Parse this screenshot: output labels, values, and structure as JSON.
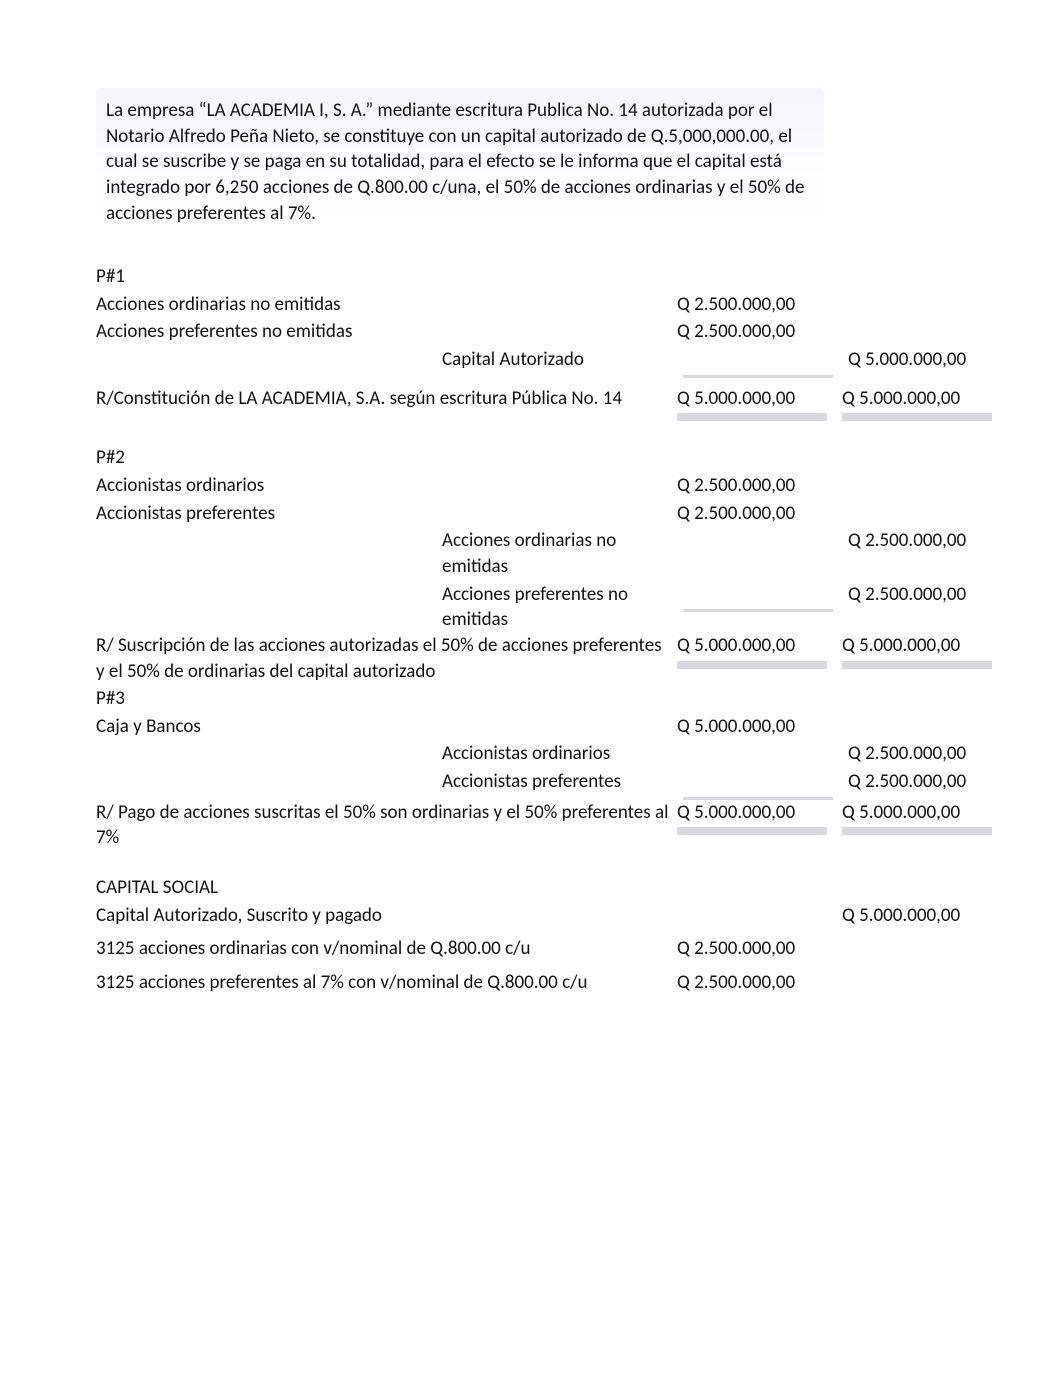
{
  "intro": "La empresa “LA ACADEMIA I, S. A.” mediante escritura Publica No. 14 autorizada por el Notario Alfredo Peña Nieto, se constituye con un capital autorizado de Q.5,000,000.00, el cual se suscribe y se paga en su totalidad, para el efecto se le informa que el capital está integrado por 6,250 acciones de Q.800.00 c/una, el 50% de acciones ordinarias y el 50% de acciones preferentes al 7%.",
  "p1": {
    "heading": "P#1",
    "l1_desc": "Acciones ordinarias no emitidas",
    "l1_debit": "Q  2.500.000,00",
    "l2_desc": "Acciones preferentes no emitidas",
    "l2_debit": "Q  2.500.000,00",
    "l3_mid": "Capital Autorizado",
    "l3_credit": "Q  5.000.000,00",
    "l4_desc": "R/Constitución de LA ACADEMIA, S.A. según escritura Pública No. 14",
    "l4_debit": "Q  5.000.000,00",
    "l4_credit": "Q  5.000.000,00"
  },
  "p2": {
    "heading": "P#2",
    "l1_desc": "Accionistas ordinarios",
    "l1_debit": "Q  2.500.000,00",
    "l2_desc": "Accionistas preferentes",
    "l2_debit": "Q  2.500.000,00",
    "l3_mid": "Acciones ordinarias no emitidas",
    "l3_credit": "Q  2.500.000,00",
    "l4_mid": "Acciones preferentes no emitidas",
    "l4_credit": "Q  2.500.000,00",
    "l5_desc": "R/ Suscripción de las acciones autorizadas el 50% de acciones preferentes y el 50% de ordinarias del capital autorizado",
    "l5_debit": "Q  5.000.000,00",
    "l5_credit": "Q  5.000.000,00"
  },
  "p3": {
    "heading": "P#3",
    "l1_desc": "Caja y Bancos",
    "l1_debit": "Q  5.000.000,00",
    "l2_mid": "Accionistas ordinarios",
    "l2_credit": "Q  2.500.000,00",
    "l3_mid": "Accionistas preferentes",
    "l3_credit": "Q  2.500.000,00",
    "l4_desc": "R/ Pago de acciones suscritas el 50% son ordinarias y el 50% preferentes al 7%",
    "l4_debit": "Q  5.000.000,00",
    "l4_credit": "Q  5.000.000,00"
  },
  "cap": {
    "heading": "CAPITAL SOCIAL",
    "l1_desc": "Capital Autorizado, Suscrito y pagado",
    "l1_credit": "Q  5.000.000,00",
    "l2_desc": "3125 acciones ordinarias con v/nominal de Q.800.00 c/u",
    "l2_debit": "Q  2.500.000,00",
    "l3_desc": "3125 acciones preferentes al 7% con v/nominal de Q.800.00 c/u",
    "l3_debit": "Q  2.500.000,00"
  }
}
